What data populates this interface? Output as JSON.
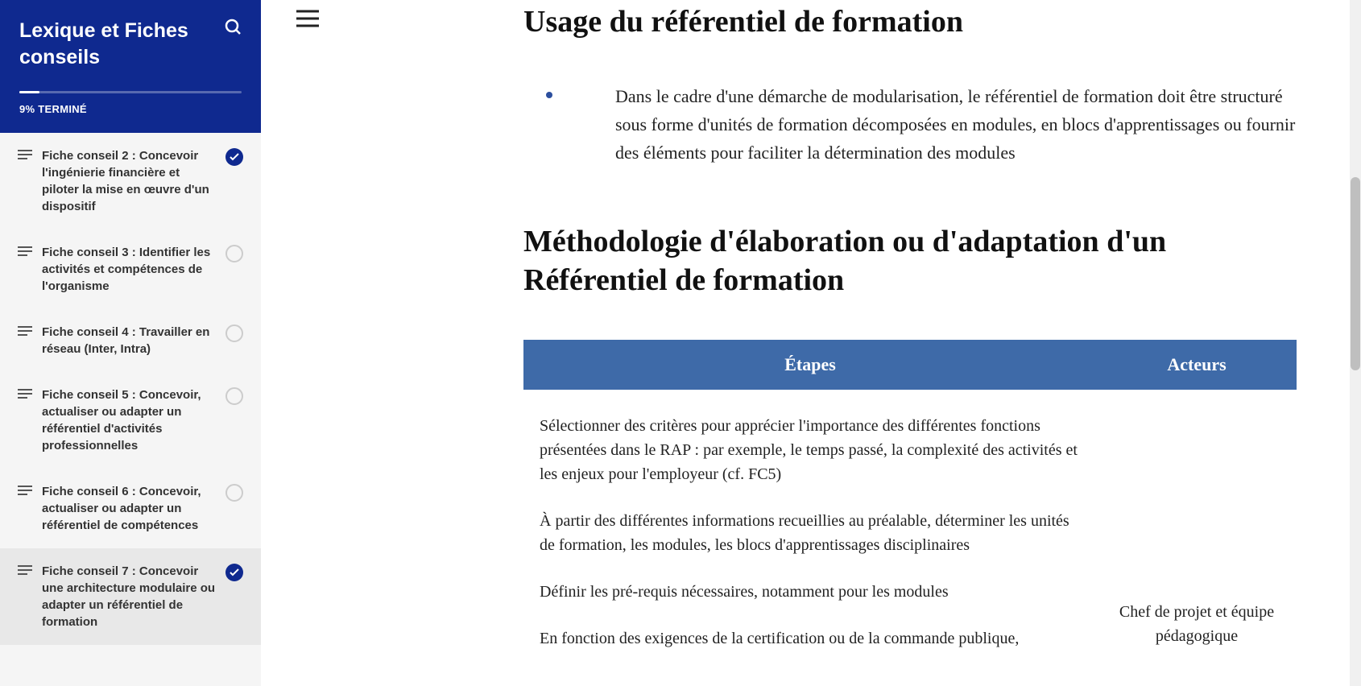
{
  "sidebar": {
    "title": "Lexique et Fiches conseils",
    "progress": {
      "percent": 9,
      "label": "9% TERMINÉ"
    },
    "items": [
      {
        "label": "Fiche conseil 2 : Concevoir l'ingénierie financière et piloter la mise en œuvre d'un dispositif",
        "status": "done",
        "active": false
      },
      {
        "label": "Fiche conseil 3 : Identifier les activités et compétences de l'organisme",
        "status": "empty",
        "active": false
      },
      {
        "label": "Fiche conseil 4 : Travailler en réseau (Inter, Intra)",
        "status": "empty",
        "active": false
      },
      {
        "label": "Fiche conseil 5 : Concevoir, actualiser ou adapter un référentiel d'activités professionnelles",
        "status": "empty",
        "active": false
      },
      {
        "label": "Fiche conseil 6 : Concevoir, actualiser ou adapter un référentiel de compétences",
        "status": "empty",
        "active": false
      },
      {
        "label": "Fiche conseil 7 : Concevoir une architecture modulaire ou adapter un référentiel de formation",
        "status": "done",
        "active": true
      }
    ]
  },
  "content": {
    "heading1": "Usage du référentiel de formation",
    "bullet1": "Dans le cadre d'une démarche de modularisation, le référentiel de formation doit être structuré sous forme d'unités de formation décomposées en modules, en blocs d'apprentissages ou fournir des éléments pour faciliter la détermination des modules",
    "heading2": "Méthodologie d'élaboration ou d'adaptation d'un Référentiel de formation",
    "table": {
      "headers": {
        "steps": "Étapes",
        "actors": "Acteurs"
      },
      "step1": "Sélectionner des critères pour apprécier l'importance des différentes fonctions présentées dans le RAP : par exemple, le temps passé, la complexité des activités et les enjeux pour l'employeur (cf. FC5)",
      "step2": "À partir des différentes informations recueillies au préalable, déterminer les unités de formation, les modules, les blocs d'apprentissages disciplinaires",
      "step3": "Définir les pré-requis nécessaires, notamment pour les modules",
      "step4": "En fonction des exigences de la certification ou de la commande publique,",
      "actors_cell": "Chef de projet et équipe pédagogique"
    }
  },
  "colors": {
    "brand": "#0f298f",
    "tableHeader": "#3e6aa8",
    "bullet": "#2c4f9e"
  }
}
